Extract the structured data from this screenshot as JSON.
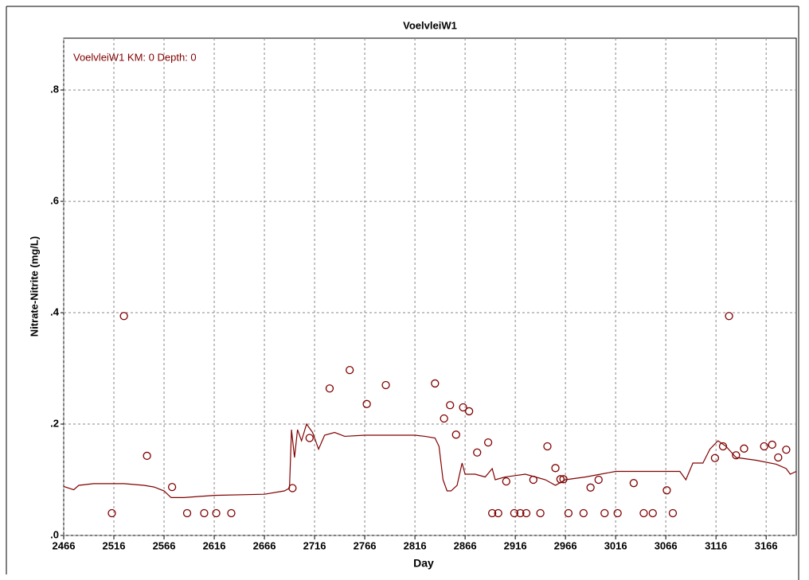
{
  "chart_data": {
    "type": "line",
    "title": "VoelvleiW1",
    "xlabel": "Day",
    "ylabel": "Nitrate-Nitrite (mg/L)",
    "xlim": [
      2466,
      3196
    ],
    "ylim": [
      0,
      0.893
    ],
    "xticks": [
      2466,
      2516,
      2566,
      2616,
      2666,
      2716,
      2766,
      2816,
      2866,
      2916,
      2966,
      3016,
      3066,
      3116,
      3166
    ],
    "yticks": [
      {
        "value": 0,
        "label": ".0"
      },
      {
        "value": 0.2,
        "label": ".2"
      },
      {
        "value": 0.4,
        "label": ".4"
      },
      {
        "value": 0.6,
        "label": ".6"
      },
      {
        "value": 0.8,
        "label": ".8"
      }
    ],
    "grid": true,
    "legend": "upper left",
    "series": [
      {
        "name": "VoelvleiW1 KM: 0 Depth: 0",
        "type": "line",
        "color": "#800000",
        "x": [
          2466,
          2476,
          2481,
          2496,
          2526,
          2546,
          2556,
          2566,
          2573,
          2586,
          2616,
          2666,
          2686,
          2691,
          2693,
          2696,
          2699,
          2703,
          2708,
          2714,
          2720,
          2726,
          2736,
          2746,
          2766,
          2816,
          2826,
          2836,
          2840,
          2844,
          2848,
          2852,
          2858,
          2863,
          2866,
          2876,
          2886,
          2893,
          2896,
          2906,
          2926,
          2936,
          2946,
          2956,
          2966,
          2986,
          3016,
          3036,
          3066,
          3080,
          3086,
          3093,
          3103,
          3110,
          3118,
          3126,
          3136,
          3156,
          3176,
          3186,
          3190,
          3196
        ],
        "values": [
          0.088,
          0.082,
          0.09,
          0.093,
          0.093,
          0.09,
          0.087,
          0.08,
          0.068,
          0.068,
          0.072,
          0.074,
          0.08,
          0.085,
          0.19,
          0.14,
          0.19,
          0.17,
          0.2,
          0.185,
          0.155,
          0.18,
          0.185,
          0.178,
          0.18,
          0.18,
          0.178,
          0.175,
          0.16,
          0.1,
          0.08,
          0.08,
          0.09,
          0.13,
          0.11,
          0.11,
          0.105,
          0.12,
          0.1,
          0.105,
          0.11,
          0.105,
          0.1,
          0.09,
          0.1,
          0.105,
          0.115,
          0.115,
          0.115,
          0.115,
          0.1,
          0.13,
          0.13,
          0.155,
          0.17,
          0.16,
          0.14,
          0.135,
          0.128,
          0.12,
          0.11,
          0.115
        ]
      },
      {
        "type": "scatter",
        "color": "#800000",
        "x": [
          2514,
          2526,
          2549,
          2574,
          2589,
          2606,
          2618,
          2633,
          2694,
          2711,
          2731,
          2751,
          2768,
          2787,
          2836,
          2845,
          2851,
          2857,
          2864,
          2870,
          2878,
          2889,
          2893,
          2899,
          2907,
          2915,
          2921,
          2927,
          2934,
          2941,
          2948,
          2956,
          2961,
          2964,
          2969,
          2984,
          2991,
          2999,
          3005,
          3018,
          3034,
          3044,
          3053,
          3067,
          3073,
          3115,
          3123,
          3129,
          3136,
          3144,
          3164,
          3172,
          3178,
          3186
        ],
        "values": [
          0.04,
          0.394,
          0.143,
          0.087,
          0.04,
          0.04,
          0.04,
          0.04,
          0.085,
          0.175,
          0.264,
          0.297,
          0.236,
          0.27,
          0.273,
          0.21,
          0.234,
          0.181,
          0.23,
          0.223,
          0.149,
          0.167,
          0.04,
          0.04,
          0.097,
          0.04,
          0.04,
          0.04,
          0.1,
          0.04,
          0.16,
          0.121,
          0.101,
          0.101,
          0.04,
          0.04,
          0.086,
          0.1,
          0.04,
          0.04,
          0.094,
          0.04,
          0.04,
          0.081,
          0.04,
          0.139,
          0.16,
          0.394,
          0.144,
          0.156,
          0.16,
          0.163,
          0.14,
          0.154
        ]
      }
    ]
  }
}
